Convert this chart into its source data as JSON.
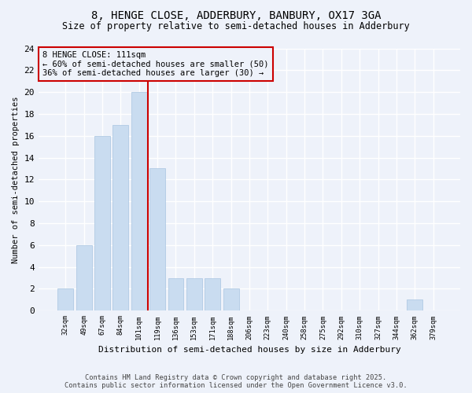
{
  "title1": "8, HENGE CLOSE, ADDERBURY, BANBURY, OX17 3GA",
  "title2": "Size of property relative to semi-detached houses in Adderbury",
  "xlabel": "Distribution of semi-detached houses by size in Adderbury",
  "ylabel": "Number of semi-detached properties",
  "categories": [
    "32sqm",
    "49sqm",
    "67sqm",
    "84sqm",
    "101sqm",
    "119sqm",
    "136sqm",
    "153sqm",
    "171sqm",
    "188sqm",
    "206sqm",
    "223sqm",
    "240sqm",
    "258sqm",
    "275sqm",
    "292sqm",
    "310sqm",
    "327sqm",
    "344sqm",
    "362sqm",
    "379sqm"
  ],
  "values": [
    2,
    6,
    16,
    17,
    20,
    13,
    3,
    3,
    3,
    2,
    0,
    0,
    0,
    0,
    0,
    0,
    0,
    0,
    0,
    1,
    0
  ],
  "bar_color": "#c9dcf0",
  "bar_edge_color": "#a8c4e0",
  "vline_index": 5,
  "vline_color": "#cc0000",
  "annotation_title": "8 HENGE CLOSE: 111sqm",
  "annotation_line1": "← 60% of semi-detached houses are smaller (50)",
  "annotation_line2": "36% of semi-detached houses are larger (30) →",
  "ylim": [
    0,
    24
  ],
  "yticks": [
    0,
    2,
    4,
    6,
    8,
    10,
    12,
    14,
    16,
    18,
    20,
    22,
    24
  ],
  "footer1": "Contains HM Land Registry data © Crown copyright and database right 2025.",
  "footer2": "Contains public sector information licensed under the Open Government Licence v3.0.",
  "bg_color": "#eef2fa",
  "grid_color": "#ffffff",
  "title_fontsize": 10,
  "subtitle_fontsize": 8.5
}
